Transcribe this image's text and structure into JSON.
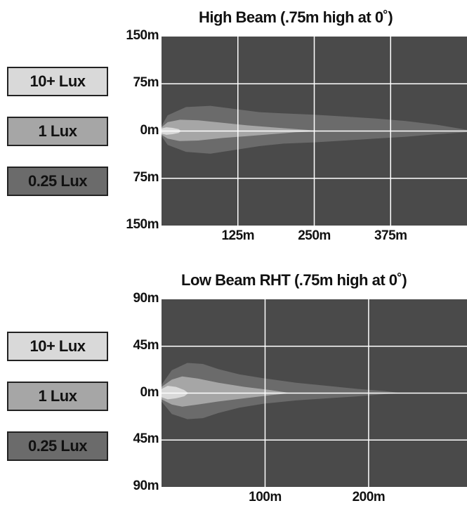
{
  "colors": {
    "background": "#4a4a4a",
    "grid": "#ffffff",
    "lux_10": "#d9d9d9",
    "lux_1": "#a6a6a6",
    "lux_025": "#6b6b6b"
  },
  "chart_data": [
    {
      "type": "area",
      "title": "High Beam (.75m high at 0˚)",
      "legend": [
        "10+ Lux",
        "1 Lux",
        "0.25 Lux"
      ],
      "y_ticks": [
        "150m",
        "75m",
        "0m",
        "75m",
        "150m"
      ],
      "x_ticks": [
        "125m",
        "250m",
        "375m"
      ],
      "xlim": [
        0,
        500
      ],
      "ylim": [
        -150,
        150
      ],
      "x_tick_values": [
        125,
        250,
        375
      ],
      "y_tick_values": [
        150,
        75,
        0,
        -75,
        -150
      ],
      "grid": true,
      "series": [
        {
          "name": "0.25 Lux",
          "x": [
            0,
            10,
            40,
            80,
            120,
            160,
            200,
            250,
            300,
            350,
            400,
            450,
            500
          ],
          "upper": [
            8,
            25,
            38,
            40,
            35,
            30,
            28,
            26,
            23,
            20,
            16,
            10,
            2
          ],
          "lower": [
            -8,
            -22,
            -33,
            -36,
            -30,
            -24,
            -20,
            -18,
            -15,
            -12,
            -9,
            -5,
            -2
          ]
        },
        {
          "name": "1 Lux",
          "x": [
            0,
            10,
            30,
            60,
            100,
            140,
            180,
            220,
            250
          ],
          "upper": [
            6,
            14,
            18,
            17,
            13,
            9,
            6,
            3,
            1
          ],
          "lower": [
            -6,
            -12,
            -16,
            -15,
            -11,
            -8,
            -5,
            -2,
            -1
          ]
        },
        {
          "name": "10+ Lux",
          "x": [
            0,
            8,
            18,
            28,
            32
          ],
          "upper": [
            4,
            6,
            5,
            3,
            0
          ],
          "lower": [
            -4,
            -6,
            -5,
            -3,
            0
          ]
        }
      ]
    },
    {
      "type": "area",
      "title": "Low Beam RHT (.75m high at 0˚)",
      "legend": [
        "10+ Lux",
        "1 Lux",
        "0.25 Lux"
      ],
      "y_ticks": [
        "90m",
        "45m",
        "0m",
        "45m",
        "90m"
      ],
      "x_ticks": [
        "100m",
        "200m"
      ],
      "xlim": [
        0,
        295
      ],
      "ylim": [
        -90,
        90
      ],
      "x_tick_values": [
        100,
        200
      ],
      "y_tick_values": [
        90,
        45,
        0,
        -45,
        -90
      ],
      "grid": true,
      "series": [
        {
          "name": "0.25 Lux",
          "x": [
            0,
            10,
            25,
            40,
            55,
            75,
            100,
            130,
            160,
            190,
            215,
            232
          ],
          "upper": [
            8,
            22,
            29,
            28,
            23,
            18,
            14,
            10,
            7,
            4,
            2,
            0
          ],
          "lower": [
            -8,
            -20,
            -25,
            -24,
            -19,
            -14,
            -10,
            -7,
            -5,
            -3,
            -1,
            0
          ]
        },
        {
          "name": "1 Lux",
          "x": [
            0,
            10,
            20,
            35,
            55,
            80,
            105,
            125
          ],
          "upper": [
            6,
            13,
            16,
            14,
            10,
            6,
            3,
            0
          ],
          "lower": [
            -6,
            -11,
            -13,
            -11,
            -8,
            -5,
            -2,
            0
          ]
        },
        {
          "name": "10+ Lux",
          "x": [
            0,
            6,
            14,
            22,
            26
          ],
          "upper": [
            4,
            7,
            6,
            3,
            0
          ],
          "lower": [
            -4,
            -6,
            -5,
            -3,
            0
          ]
        }
      ]
    }
  ]
}
